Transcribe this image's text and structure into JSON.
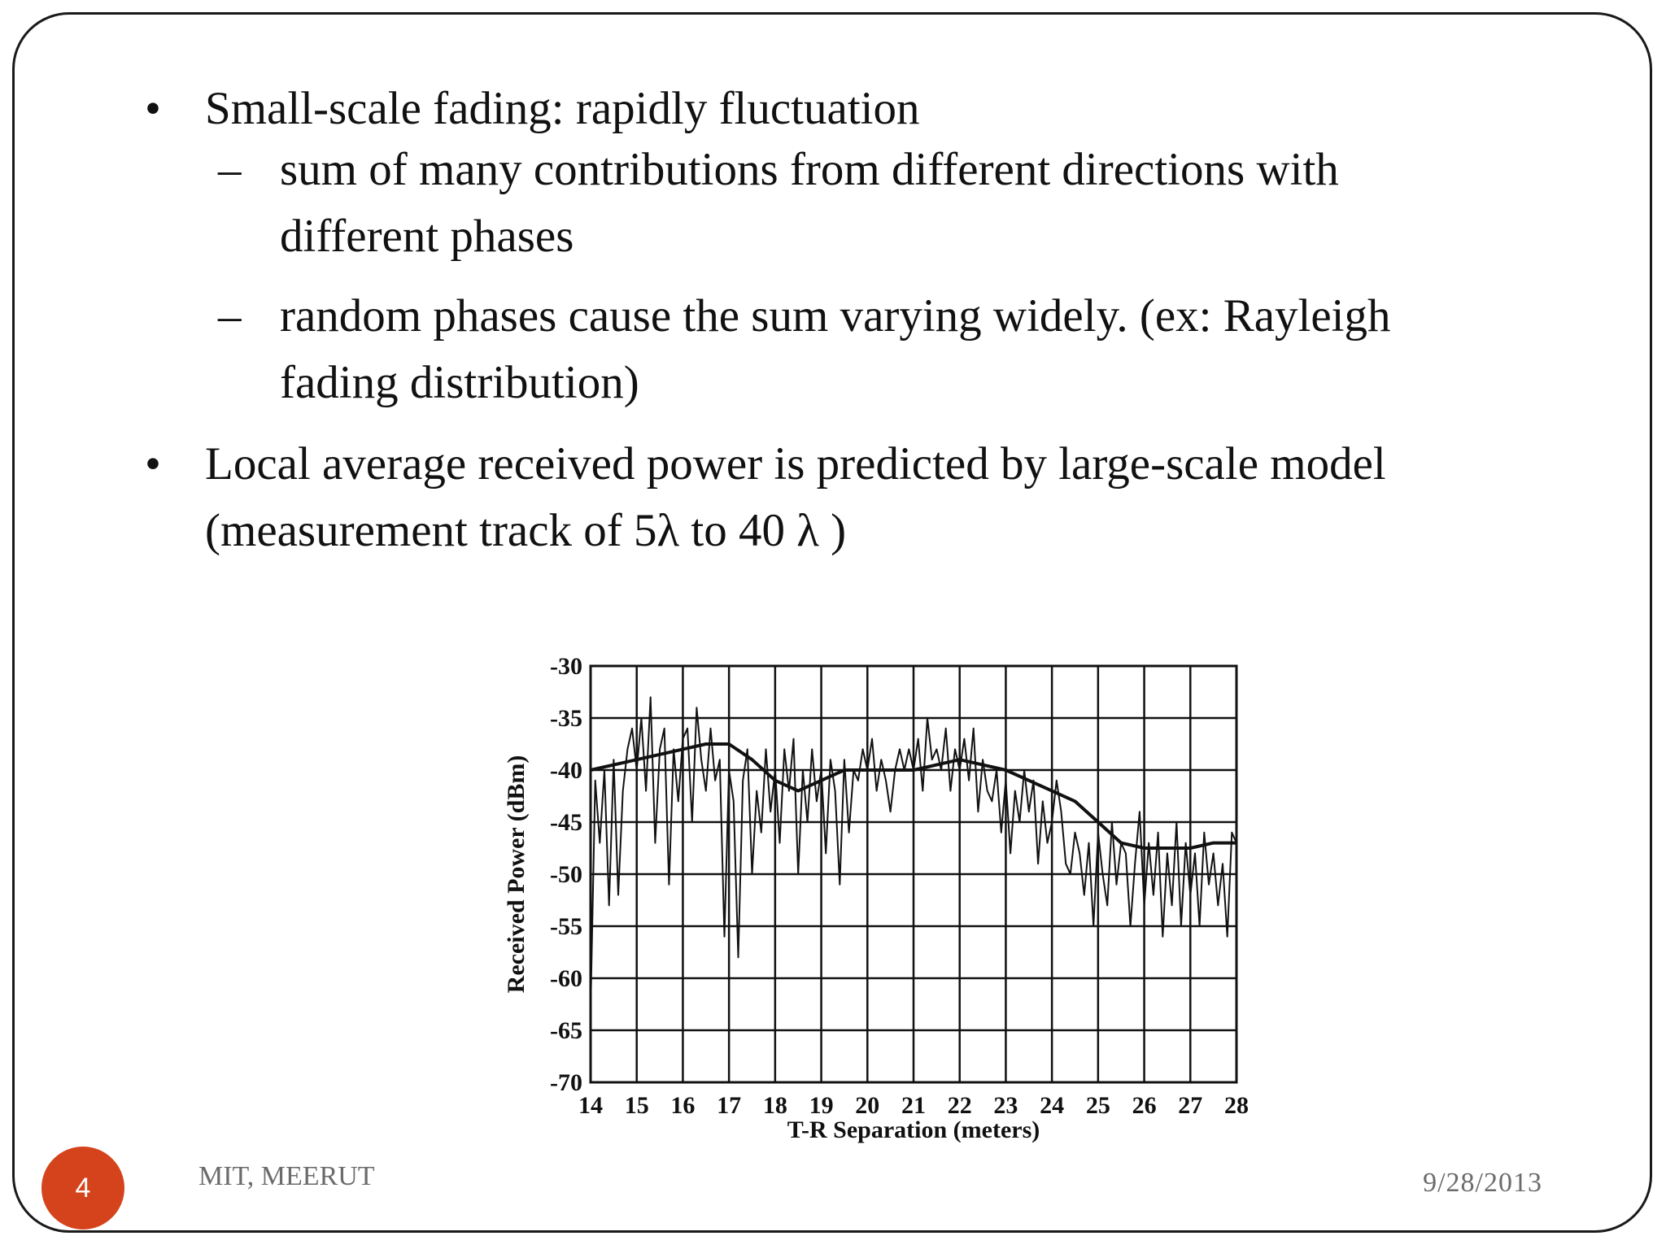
{
  "slide": {
    "bullets": [
      {
        "marker": "•",
        "text": "Small-scale fading: rapidly fluctuation"
      },
      {
        "marker": "•",
        "line1": "Local average received power is predicted by large-scale model",
        "line2": "(measurement track of 5λ  to 40 λ )"
      }
    ],
    "sub_bullets": [
      {
        "marker": "–",
        "line1": "sum of many contributions from different directions with",
        "line2": "different phases"
      },
      {
        "marker": "–",
        "line1": "random phases cause the sum varying widely. (ex: Rayleigh",
        "line2": "fading distribution)"
      }
    ],
    "footer": {
      "page_number": "4",
      "institution": "MIT, MEERUT",
      "date": "9/28/2013"
    },
    "colors": {
      "badge": "#d4431b",
      "footer_text": "#6b6b6b",
      "plot_line": "#111111"
    }
  },
  "chart_data": {
    "type": "line",
    "title": "",
    "xlabel": "T-R Separation (meters)",
    "ylabel": "Received Power (dBm)",
    "xlim": [
      14,
      28
    ],
    "ylim": [
      -70,
      -30
    ],
    "x_ticks": [
      "14",
      "15",
      "16",
      "17",
      "18",
      "19",
      "20",
      "21",
      "22",
      "23",
      "24",
      "25",
      "26",
      "27",
      "28"
    ],
    "y_ticks": [
      "-30",
      "-35",
      "-40",
      "-45",
      "-50",
      "-55",
      "-60",
      "-65",
      "-70"
    ],
    "grid": true,
    "series": [
      {
        "x": [
          14.0,
          14.1,
          14.2,
          14.3,
          14.4,
          14.5,
          14.6,
          14.7,
          14.8,
          14.9,
          15.0,
          15.1,
          15.2,
          15.3,
          15.4,
          15.5,
          15.6,
          15.7,
          15.8,
          15.9,
          16.0,
          16.1,
          16.2,
          16.3,
          16.4,
          16.5,
          16.6,
          16.7,
          16.8,
          16.9,
          17.0,
          17.1,
          17.2,
          17.3,
          17.4,
          17.5,
          17.6,
          17.7,
          17.8,
          17.9,
          18.0,
          18.1,
          18.2,
          18.3,
          18.4,
          18.5,
          18.6,
          18.7,
          18.8,
          18.9,
          19.0,
          19.1,
          19.2,
          19.3,
          19.4,
          19.5,
          19.6,
          19.7,
          19.8,
          19.9,
          20.0,
          20.1,
          20.2,
          20.3,
          20.4,
          20.5,
          20.6,
          20.7,
          20.8,
          20.9,
          21.0,
          21.1,
          21.2,
          21.3,
          21.4,
          21.5,
          21.6,
          21.7,
          21.8,
          21.9,
          22.0,
          22.1,
          22.2,
          22.3,
          22.4,
          22.5,
          22.6,
          22.7,
          22.8,
          22.9,
          23.0,
          23.1,
          23.2,
          23.3,
          23.4,
          23.5,
          23.6,
          23.7,
          23.8,
          23.9,
          24.0,
          24.1,
          24.2,
          24.3,
          24.4,
          24.5,
          24.6,
          24.7,
          24.8,
          24.9,
          25.0,
          25.1,
          25.2,
          25.3,
          25.4,
          25.5,
          25.6,
          25.7,
          25.8,
          25.9,
          26.0,
          26.1,
          26.2,
          26.3,
          26.4,
          26.5,
          26.6,
          26.7,
          26.8,
          26.9,
          27.0,
          27.1,
          27.2,
          27.3,
          27.4,
          27.5,
          27.6,
          27.7,
          27.8,
          27.9,
          28.0
        ],
        "values": [
          -63,
          -41,
          -47,
          -40,
          -53,
          -39,
          -52,
          -42,
          -38,
          -36,
          -40,
          -35,
          -42,
          -33,
          -47,
          -38,
          -36,
          -51,
          -38,
          -43,
          -37,
          -36,
          -45,
          -34,
          -39,
          -42,
          -36,
          -41,
          -39,
          -56,
          -40,
          -43,
          -58,
          -41,
          -38,
          -50,
          -42,
          -46,
          -38,
          -44,
          -40,
          -47,
          -38,
          -42,
          -37,
          -50,
          -40,
          -45,
          -38,
          -43,
          -40,
          -48,
          -39,
          -42,
          -51,
          -39,
          -46,
          -40,
          -41,
          -38,
          -40,
          -37,
          -42,
          -39,
          -41,
          -44,
          -40,
          -38,
          -40,
          -38,
          -40,
          -37,
          -42,
          -35,
          -39,
          -38,
          -40,
          -36,
          -42,
          -38,
          -40,
          -37,
          -41,
          -36,
          -44,
          -39,
          -42,
          -43,
          -40,
          -46,
          -41,
          -48,
          -42,
          -45,
          -40,
          -44,
          -41,
          -49,
          -43,
          -47,
          -45,
          -41,
          -44,
          -49,
          -50,
          -46,
          -48,
          -52,
          -47,
          -55,
          -46,
          -50,
          -53,
          -45,
          -51,
          -47,
          -48,
          -55,
          -49,
          -44,
          -53,
          -47,
          -52,
          -46,
          -56,
          -48,
          -53,
          -45,
          -55,
          -47,
          -52,
          -48,
          -55,
          -46,
          -51,
          -48,
          -53,
          -49,
          -56,
          -46,
          -47
        ]
      },
      {
        "x": [
          14.0,
          14.5,
          15.0,
          15.5,
          16.0,
          16.5,
          17.0,
          17.5,
          18.0,
          18.5,
          19.0,
          19.5,
          20.0,
          20.5,
          21.0,
          21.5,
          22.0,
          22.5,
          23.0,
          23.5,
          24.0,
          24.5,
          25.0,
          25.5,
          26.0,
          26.5,
          27.0,
          27.5,
          28.0
        ],
        "values": [
          -40,
          -39.5,
          -39,
          -38.5,
          -38,
          -37.5,
          -37.5,
          -39,
          -41,
          -42,
          -41,
          -40,
          -40,
          -40,
          -40,
          -39.5,
          -39,
          -39.5,
          -40,
          -41,
          -42,
          -43,
          -45,
          -47,
          -47.5,
          -47.5,
          -47.5,
          -47,
          -47
        ]
      }
    ]
  }
}
